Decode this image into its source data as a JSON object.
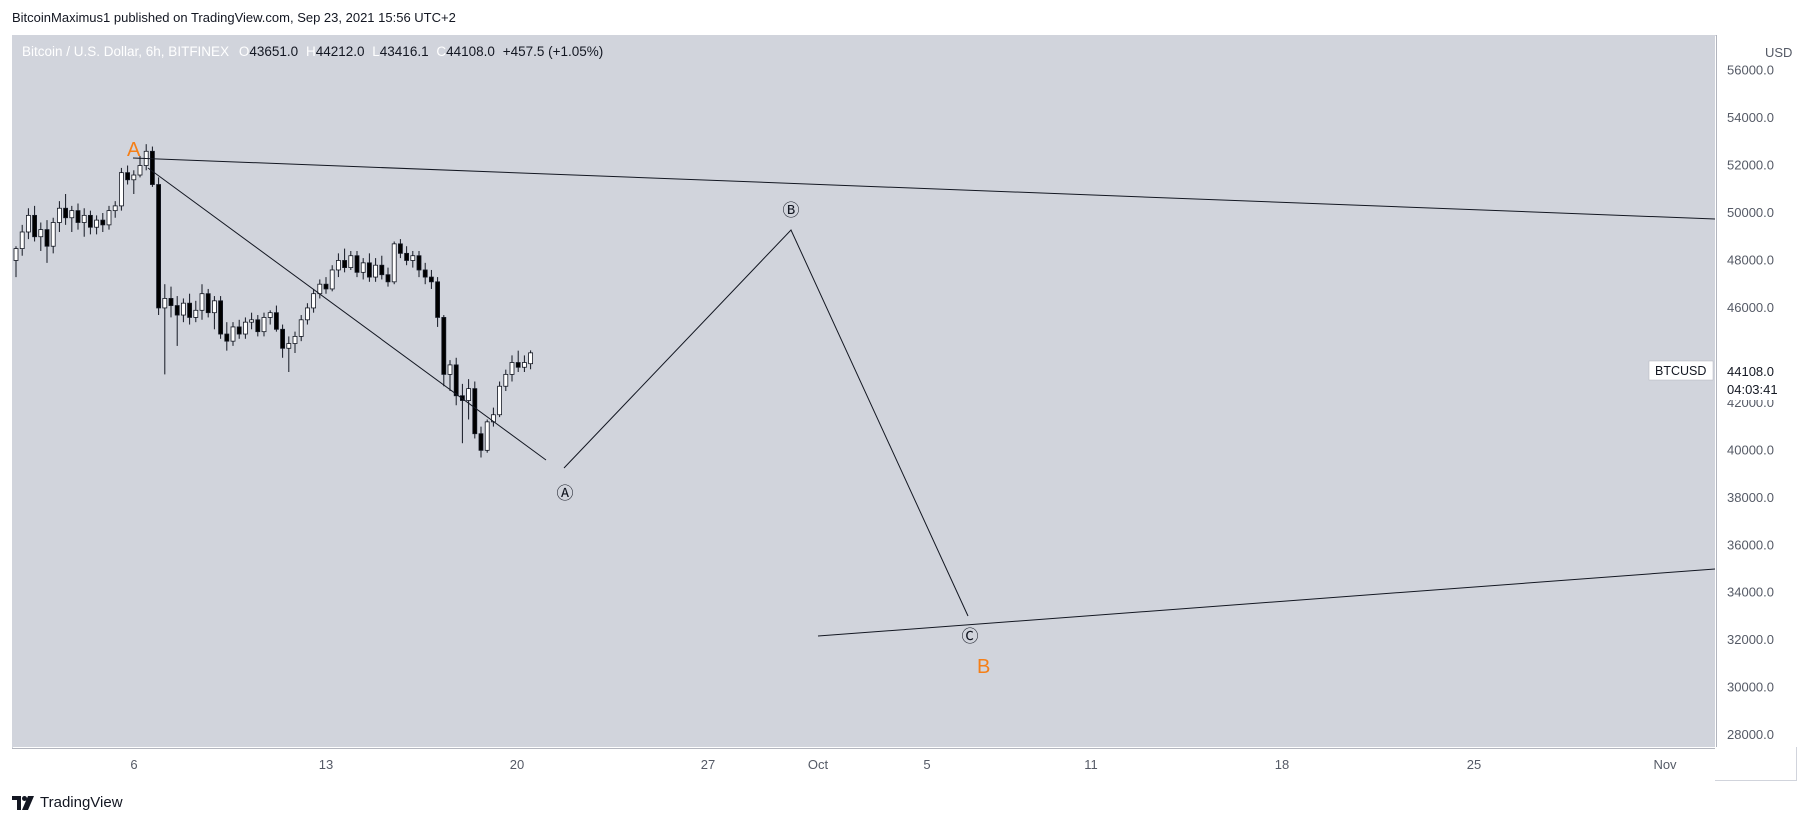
{
  "header": {
    "caption": "BitcoinMaximus1 published on TradingView.com, Sep 23, 2021 15:56 UTC+2"
  },
  "legend": {
    "symbol": "Bitcoin / U.S. Dollar, 6h, BITFINEX",
    "open_label": "O",
    "open": "43651.0",
    "high_label": "H",
    "high": "44212.0",
    "low_label": "L",
    "low": "43416.1",
    "close_label": "C",
    "close": "44108.0",
    "change": "+457.5 (+1.05%)"
  },
  "footer": {
    "brand": "TradingView"
  },
  "colors": {
    "plot_background": "#d1d4dc",
    "up_candle": "#ffffff",
    "down_candle": "#000000",
    "wave_label_major": "#f57f17",
    "line": "#131722"
  },
  "chart_data": {
    "type": "candlestick",
    "symbol": "BTCUSD",
    "timeframe": "6h",
    "exchange": "BITFINEX",
    "currency_label": "USD",
    "y_tick_labels": [
      "56000.0",
      "54000.0",
      "52000.0",
      "50000.0",
      "48000.0",
      "46000.0",
      "42000.0",
      "40000.0",
      "38000.0",
      "36000.0",
      "34000.0",
      "32000.0",
      "30000.0",
      "28000.0"
    ],
    "y_range": [
      27500,
      57500
    ],
    "x_tick_labels": [
      "6",
      "13",
      "20",
      "27",
      "Oct",
      "5",
      "11",
      "18",
      "25",
      "Nov"
    ],
    "price_tag": {
      "symbol": "BTCUSD",
      "price": "44108.0",
      "countdown": "04:03:41"
    },
    "candles": [
      {
        "o": 48000,
        "h": 48600,
        "l": 47300,
        "c": 48500
      },
      {
        "o": 48500,
        "h": 49500,
        "l": 48200,
        "c": 49200
      },
      {
        "o": 49200,
        "h": 50200,
        "l": 48900,
        "c": 49900
      },
      {
        "o": 49900,
        "h": 50300,
        "l": 48800,
        "c": 49000
      },
      {
        "o": 49000,
        "h": 49600,
        "l": 48400,
        "c": 49300
      },
      {
        "o": 49300,
        "h": 49700,
        "l": 47900,
        "c": 48600
      },
      {
        "o": 48600,
        "h": 49800,
        "l": 48300,
        "c": 49600
      },
      {
        "o": 49600,
        "h": 50500,
        "l": 49200,
        "c": 50200
      },
      {
        "o": 50200,
        "h": 50800,
        "l": 49500,
        "c": 49800
      },
      {
        "o": 49800,
        "h": 50300,
        "l": 49200,
        "c": 50100
      },
      {
        "o": 50100,
        "h": 50400,
        "l": 49300,
        "c": 49600
      },
      {
        "o": 49600,
        "h": 50200,
        "l": 49000,
        "c": 49900
      },
      {
        "o": 49900,
        "h": 50100,
        "l": 49100,
        "c": 49400
      },
      {
        "o": 49400,
        "h": 49900,
        "l": 49100,
        "c": 49700
      },
      {
        "o": 49700,
        "h": 50000,
        "l": 49200,
        "c": 49500
      },
      {
        "o": 49500,
        "h": 50300,
        "l": 49300,
        "c": 50100
      },
      {
        "o": 50100,
        "h": 50500,
        "l": 49800,
        "c": 50300
      },
      {
        "o": 50300,
        "h": 51900,
        "l": 50100,
        "c": 51700
      },
      {
        "o": 51700,
        "h": 52000,
        "l": 51200,
        "c": 51400
      },
      {
        "o": 51400,
        "h": 51800,
        "l": 50800,
        "c": 51600
      },
      {
        "o": 51600,
        "h": 52400,
        "l": 51500,
        "c": 52000
      },
      {
        "o": 52000,
        "h": 52900,
        "l": 51800,
        "c": 52600
      },
      {
        "o": 52600,
        "h": 52800,
        "l": 51100,
        "c": 51200
      },
      {
        "o": 51200,
        "h": 51500,
        "l": 45700,
        "c": 46000
      },
      {
        "o": 46000,
        "h": 47000,
        "l": 43200,
        "c": 46400
      },
      {
        "o": 46400,
        "h": 46900,
        "l": 45600,
        "c": 46100
      },
      {
        "o": 46100,
        "h": 46500,
        "l": 44400,
        "c": 45700
      },
      {
        "o": 45700,
        "h": 46400,
        "l": 45400,
        "c": 46200
      },
      {
        "o": 46200,
        "h": 46600,
        "l": 45300,
        "c": 45600
      },
      {
        "o": 45600,
        "h": 46300,
        "l": 45400,
        "c": 45900
      },
      {
        "o": 45900,
        "h": 47000,
        "l": 45500,
        "c": 46600
      },
      {
        "o": 46600,
        "h": 46800,
        "l": 45600,
        "c": 45800
      },
      {
        "o": 45800,
        "h": 46500,
        "l": 45100,
        "c": 46300
      },
      {
        "o": 46300,
        "h": 46500,
        "l": 44700,
        "c": 44900
      },
      {
        "o": 44900,
        "h": 45400,
        "l": 44200,
        "c": 44600
      },
      {
        "o": 44600,
        "h": 45400,
        "l": 44400,
        "c": 45200
      },
      {
        "o": 45200,
        "h": 45500,
        "l": 44700,
        "c": 44900
      },
      {
        "o": 44900,
        "h": 45600,
        "l": 44700,
        "c": 45400
      },
      {
        "o": 45400,
        "h": 45800,
        "l": 45100,
        "c": 45500
      },
      {
        "o": 45500,
        "h": 45700,
        "l": 44800,
        "c": 45000
      },
      {
        "o": 45000,
        "h": 45800,
        "l": 44800,
        "c": 45600
      },
      {
        "o": 45600,
        "h": 45900,
        "l": 45300,
        "c": 45800
      },
      {
        "o": 45800,
        "h": 46100,
        "l": 45000,
        "c": 45100
      },
      {
        "o": 45100,
        "h": 45300,
        "l": 43900,
        "c": 44300
      },
      {
        "o": 44300,
        "h": 44800,
        "l": 43300,
        "c": 44500
      },
      {
        "o": 44500,
        "h": 45000,
        "l": 44100,
        "c": 44800
      },
      {
        "o": 44800,
        "h": 45700,
        "l": 44600,
        "c": 45500
      },
      {
        "o": 45500,
        "h": 46200,
        "l": 45300,
        "c": 46000
      },
      {
        "o": 46000,
        "h": 46800,
        "l": 45800,
        "c": 46600
      },
      {
        "o": 46600,
        "h": 47200,
        "l": 46400,
        "c": 47000
      },
      {
        "o": 47000,
        "h": 47300,
        "l": 46600,
        "c": 46800
      },
      {
        "o": 46800,
        "h": 47800,
        "l": 46700,
        "c": 47600
      },
      {
        "o": 47600,
        "h": 48300,
        "l": 47300,
        "c": 48000
      },
      {
        "o": 48000,
        "h": 48500,
        "l": 47500,
        "c": 47700
      },
      {
        "o": 47700,
        "h": 48400,
        "l": 47600,
        "c": 48200
      },
      {
        "o": 48200,
        "h": 48400,
        "l": 47300,
        "c": 47500
      },
      {
        "o": 47500,
        "h": 48100,
        "l": 47200,
        "c": 47900
      },
      {
        "o": 47900,
        "h": 48300,
        "l": 47100,
        "c": 47300
      },
      {
        "o": 47300,
        "h": 48100,
        "l": 47100,
        "c": 47800
      },
      {
        "o": 47800,
        "h": 48200,
        "l": 47200,
        "c": 47400
      },
      {
        "o": 47400,
        "h": 47700,
        "l": 46900,
        "c": 47100
      },
      {
        "o": 47100,
        "h": 48800,
        "l": 47000,
        "c": 48700
      },
      {
        "o": 48700,
        "h": 48900,
        "l": 48100,
        "c": 48300
      },
      {
        "o": 48300,
        "h": 48600,
        "l": 47800,
        "c": 48000
      },
      {
        "o": 48000,
        "h": 48400,
        "l": 47700,
        "c": 48200
      },
      {
        "o": 48200,
        "h": 48400,
        "l": 47300,
        "c": 47600
      },
      {
        "o": 47600,
        "h": 47900,
        "l": 47000,
        "c": 47300
      },
      {
        "o": 47300,
        "h": 47600,
        "l": 46800,
        "c": 47100
      },
      {
        "o": 47100,
        "h": 47300,
        "l": 45200,
        "c": 45600
      },
      {
        "o": 45600,
        "h": 45700,
        "l": 42700,
        "c": 43200
      },
      {
        "o": 43200,
        "h": 43800,
        "l": 42500,
        "c": 43600
      },
      {
        "o": 43600,
        "h": 43900,
        "l": 41900,
        "c": 42300
      },
      {
        "o": 42300,
        "h": 42800,
        "l": 40300,
        "c": 42100
      },
      {
        "o": 42100,
        "h": 43000,
        "l": 41300,
        "c": 42600
      },
      {
        "o": 42600,
        "h": 42900,
        "l": 40500,
        "c": 40700
      },
      {
        "o": 40700,
        "h": 41000,
        "l": 39700,
        "c": 40000
      },
      {
        "o": 40000,
        "h": 41300,
        "l": 39900,
        "c": 41200
      },
      {
        "o": 41200,
        "h": 41800,
        "l": 41000,
        "c": 41500
      },
      {
        "o": 41500,
        "h": 42900,
        "l": 41400,
        "c": 42700
      },
      {
        "o": 42700,
        "h": 43400,
        "l": 42500,
        "c": 43200
      },
      {
        "o": 43200,
        "h": 44000,
        "l": 42900,
        "c": 43700
      },
      {
        "o": 43700,
        "h": 44200,
        "l": 43300,
        "c": 43500
      },
      {
        "o": 43500,
        "h": 44000,
        "l": 43300,
        "c": 43700
      },
      {
        "o": 43651,
        "h": 44212,
        "l": 43416.1,
        "c": 44108
      }
    ],
    "annotations": {
      "wave_labels": [
        "A",
        "B"
      ],
      "sub_wave_labels": [
        "Ⓐ",
        "Ⓑ",
        "Ⓒ"
      ]
    }
  }
}
